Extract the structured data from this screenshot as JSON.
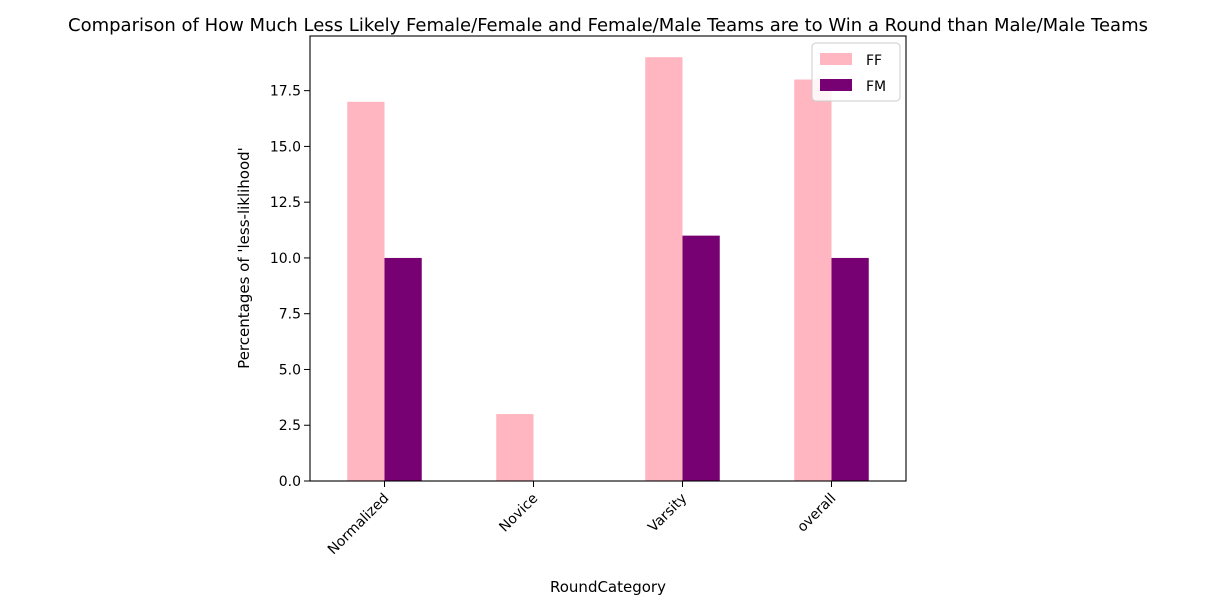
{
  "chart_data": {
    "type": "bar",
    "title": "Comparison of How Much Less Likely Female/Female and Female/Male Teams are to Win a Round than Male/Male Teams",
    "xlabel": "RoundCategory",
    "ylabel": "Percentages of 'less-liklihood'",
    "categories": [
      "Normalized",
      "Novice",
      "Varsity",
      "overall"
    ],
    "series": [
      {
        "name": "FF",
        "color": "#ffb6c1",
        "values": [
          17,
          3,
          19,
          18
        ]
      },
      {
        "name": "FM",
        "color": "#770072",
        "values": [
          10,
          0,
          11,
          10
        ]
      }
    ],
    "ylim": [
      0,
      19.95
    ],
    "yticks": [
      0.0,
      2.5,
      5.0,
      7.5,
      10.0,
      12.5,
      15.0,
      17.5
    ],
    "ytick_labels": [
      "0.0",
      "2.5",
      "5.0",
      "7.5",
      "10.0",
      "12.5",
      "15.0",
      "17.5"
    ],
    "grid": false,
    "legend_position": "top-right"
  }
}
